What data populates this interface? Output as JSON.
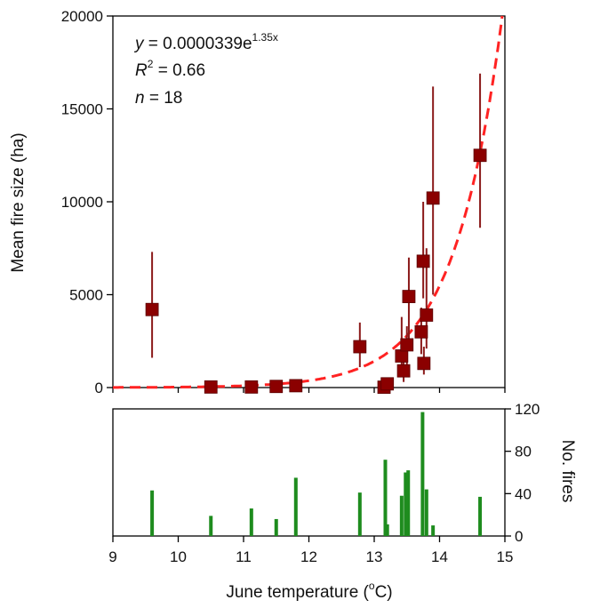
{
  "colors": {
    "marker": "#8b0000",
    "errorbar": "#8b1a1a",
    "fit": "#ff2222",
    "bars": "#1e8c1e",
    "axis": "#000000"
  },
  "chart_data": [
    {
      "type": "scatter",
      "xlim": [
        9,
        15
      ],
      "ylim": [
        0,
        20000
      ],
      "yticks": [
        0,
        5000,
        10000,
        15000,
        20000
      ],
      "ylabel": "Mean fire size (ha)",
      "annotations": {
        "eq_lhs": "y",
        "eq_rhs": " = 0.0000339e",
        "eq_exp": "1.35x",
        "r2_lhs": "R",
        "r2_sup": "2",
        "r2_rhs": " = 0.66",
        "n_lhs": "n",
        "n_rhs": " = 18"
      },
      "fit": {
        "a": 3.39e-05,
        "b": 1.35,
        "style": "dashed"
      },
      "points": [
        {
          "x": 9.6,
          "y": 4200,
          "lo": 1600,
          "hi": 7300
        },
        {
          "x": 10.5,
          "y": 30,
          "lo": 0,
          "hi": 80
        },
        {
          "x": 11.12,
          "y": 30,
          "lo": 0,
          "hi": 80
        },
        {
          "x": 11.5,
          "y": 60,
          "lo": 0,
          "hi": 120
        },
        {
          "x": 11.8,
          "y": 100,
          "lo": 0,
          "hi": 200
        },
        {
          "x": 12.78,
          "y": 2200,
          "lo": 1100,
          "hi": 3500
        },
        {
          "x": 13.15,
          "y": 20,
          "lo": 0,
          "hi": 60
        },
        {
          "x": 13.2,
          "y": 200,
          "lo": 0,
          "hi": 450
        },
        {
          "x": 13.42,
          "y": 1700,
          "lo": 800,
          "hi": 3800
        },
        {
          "x": 13.45,
          "y": 900,
          "lo": 300,
          "hi": 2000
        },
        {
          "x": 13.5,
          "y": 2300,
          "lo": 1000,
          "hi": 3300
        },
        {
          "x": 13.53,
          "y": 4900,
          "lo": 2500,
          "hi": 7000
        },
        {
          "x": 13.72,
          "y": 3000,
          "lo": 1800,
          "hi": 4300
        },
        {
          "x": 13.75,
          "y": 6800,
          "lo": 4800,
          "hi": 10000
        },
        {
          "x": 13.76,
          "y": 1300,
          "lo": 700,
          "hi": 2200
        },
        {
          "x": 13.8,
          "y": 3900,
          "lo": 2100,
          "hi": 7500
        },
        {
          "x": 13.9,
          "y": 10200,
          "lo": 5000,
          "hi": 16200
        },
        {
          "x": 14.62,
          "y": 12500,
          "lo": 8600,
          "hi": 16900
        }
      ]
    },
    {
      "type": "bar",
      "xlim": [
        9,
        15
      ],
      "xticks": [
        9,
        10,
        11,
        12,
        13,
        14,
        15
      ],
      "ylim": [
        0,
        120
      ],
      "yticks": [
        0,
        40,
        80,
        120
      ],
      "ylabel": "No. fires",
      "xlabel_pre": "June temperature (",
      "xlabel_sup": "o",
      "xlabel_post": "C)",
      "x": [
        9.6,
        10.5,
        11.12,
        11.5,
        11.8,
        12.78,
        13.17,
        13.2,
        13.42,
        13.48,
        13.52,
        13.74,
        13.8,
        13.9,
        14.62
      ],
      "values": [
        43,
        19,
        26,
        16,
        55,
        41,
        72,
        11,
        38,
        60,
        62,
        117,
        44,
        10,
        37
      ]
    }
  ]
}
